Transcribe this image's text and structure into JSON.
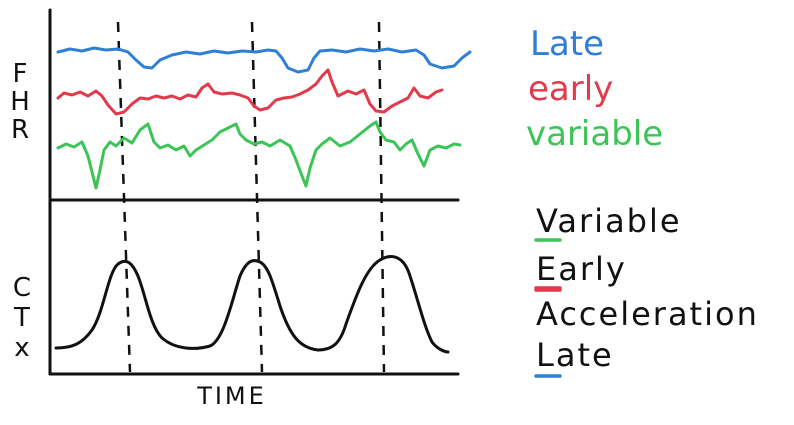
{
  "axes": {
    "fhr_label": [
      "F",
      "H",
      "R"
    ],
    "ctx_label": [
      "C",
      "T",
      "x"
    ],
    "time_label": "TIME"
  },
  "legend": [
    {
      "text": "Late",
      "color": "#2f7fd6"
    },
    {
      "text": "early",
      "color": "#e23a4a"
    },
    {
      "text": "variable",
      "color": "#3cc457"
    }
  ],
  "mnemonic": [
    {
      "first": "V",
      "rest": "ariable",
      "underline_color": "#3cc457"
    },
    {
      "first": "E",
      "rest": "arly",
      "underline_color": "#e23a4a"
    },
    {
      "first": "A",
      "rest": "cceleration",
      "underline_color": "#e23a4a"
    },
    {
      "first": "L",
      "rest": "ate",
      "underline_color": "#2f7fd6"
    }
  ],
  "colors": {
    "late": "#2f7fd6",
    "early": "#e23a4a",
    "variable": "#3cc457",
    "ink": "#111111"
  }
}
